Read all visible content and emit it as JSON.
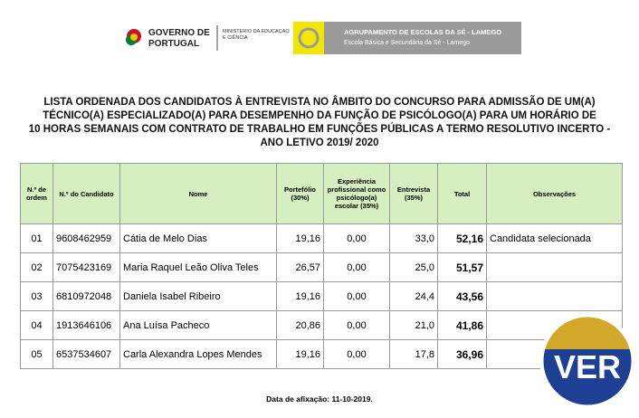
{
  "header": {
    "gov_line1": "GOVERNO DE",
    "gov_line2": "PORTUGAL",
    "ministry": "MINISTÉRIO DA EDUCAÇÃO E CIÊNCIA",
    "school_line1": "AGRUPAMENTO DE ESCOLAS DA SÉ - LAMEGO",
    "school_line2": "Escola Básica e Secundária da Sé - Lamego"
  },
  "title": [
    "LISTA ORDENADA DOS CANDIDATOS À ENTREVISTA NO ÂMBITO DO CONCURSO PARA ADMISSÃO DE UM(A)",
    "TÉCNICO(A) ESPECIALIZADO(A) PARA DESEMPENHO DA FUNÇÃO DE PSICÓLOGO(A) PARA UM HORÁRIO DE",
    "10 HORAS SEMANAIS COM CONTRATO DE TRABALHO EM FUNÇÕES PÚBLICAS A TERMO RESOLUTIVO INCERTO  -",
    "ANO LETIVO 2019/ 2020"
  ],
  "table": {
    "columns": [
      "N.º de ordem",
      "N.º do Candidato",
      "Nome",
      "Portefólio (30%)",
      "Experiência profissional como psicólogo(a) escolar (35%)",
      "Entrevista (35%)",
      "Total",
      "Observações"
    ],
    "rows": [
      [
        "01",
        "9608462959",
        "Cátia de Melo Dias",
        "19,16",
        "0,00",
        "33,0",
        "52,16",
        "Candidata selecionada"
      ],
      [
        "02",
        "7075423169",
        "Maria Raquel Leão Oliva Teles",
        "26,57",
        "0,00",
        "25,0",
        "51,57"
      ],
      [
        "03",
        "6810972048",
        "Daniela Isabel Ribeiro",
        "19,16",
        "0,00",
        "24,4",
        "43,56"
      ],
      [
        "04",
        "1913646106",
        "Ana Luísa Pacheco",
        "20,86",
        "0,00",
        "21,0",
        "41,86"
      ],
      [
        "05",
        "6537534607",
        "Carla Alexandra Lopes Mendes",
        "19,16",
        "0,00",
        "17,8",
        "36,96"
      ]
    ]
  },
  "footer": "Data de afixação: 11-10-2019.",
  "badge": "VER"
}
